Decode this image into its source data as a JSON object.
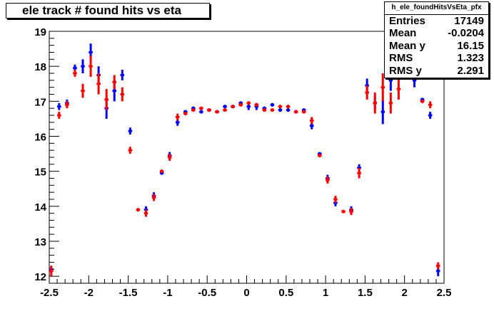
{
  "title": "ele track # found hits vs eta",
  "stats": {
    "name": "h_ele_foundHitsVsEta_pfx",
    "rows": [
      {
        "label": "Entries",
        "value": "17149"
      },
      {
        "label": "Mean",
        "value": "-0.0204"
      },
      {
        "label": "Mean y",
        "value": "16.15"
      },
      {
        "label": "RMS",
        "value": "1.323"
      },
      {
        "label": "RMS y",
        "value": "2.291"
      }
    ]
  },
  "chart_data": {
    "type": "scatter",
    "title": "ele track # found hits vs eta",
    "xlabel": "",
    "ylabel": "",
    "xlim": [
      -2.5,
      2.5
    ],
    "ylim": [
      11.8,
      19
    ],
    "x_ticks": [
      "-2.5",
      "-2",
      "-1.5",
      "-1",
      "-0.5",
      "0",
      "0.5",
      "1",
      "1.5",
      "2",
      "2.5"
    ],
    "y_ticks": [
      "12",
      "13",
      "14",
      "15",
      "16",
      "17",
      "18",
      "19"
    ],
    "grid": false,
    "bin_half_width": 0.025,
    "series": [
      {
        "color": "#0000ff",
        "points": [
          {
            "x": -2.475,
            "y": 12.2,
            "err": 0.1
          },
          {
            "x": -2.375,
            "y": 16.85,
            "err": 0.1
          },
          {
            "x": -2.275,
            "y": 16.95,
            "err": 0.1
          },
          {
            "x": -2.175,
            "y": 17.95,
            "err": 0.1
          },
          {
            "x": -2.075,
            "y": 18.0,
            "err": 0.2
          },
          {
            "x": -1.975,
            "y": 18.4,
            "err": 0.25
          },
          {
            "x": -1.875,
            "y": 17.75,
            "err": 0.25
          },
          {
            "x": -1.775,
            "y": 16.8,
            "err": 0.3
          },
          {
            "x": -1.675,
            "y": 17.3,
            "err": 0.3
          },
          {
            "x": -1.575,
            "y": 17.75,
            "err": 0.15
          },
          {
            "x": -1.475,
            "y": 16.15,
            "err": 0.1
          },
          {
            "x": -1.275,
            "y": 13.9,
            "err": 0.1
          },
          {
            "x": -1.175,
            "y": 14.3,
            "err": 0.1
          },
          {
            "x": -1.075,
            "y": 14.95,
            "err": 0.05
          },
          {
            "x": -0.975,
            "y": 15.45,
            "err": 0.1
          },
          {
            "x": -0.875,
            "y": 16.4,
            "err": 0.1
          },
          {
            "x": -0.775,
            "y": 16.7,
            "err": 0.05
          },
          {
            "x": -0.675,
            "y": 16.8,
            "err": 0.05
          },
          {
            "x": -0.575,
            "y": 16.7,
            "err": 0.05
          },
          {
            "x": -0.475,
            "y": 16.75,
            "err": 0.05
          },
          {
            "x": -0.375,
            "y": 16.7,
            "err": 0.05
          },
          {
            "x": -0.275,
            "y": 16.85,
            "err": 0.05
          },
          {
            "x": -0.175,
            "y": 16.85,
            "err": 0.05
          },
          {
            "x": -0.075,
            "y": 16.95,
            "err": 0.05
          },
          {
            "x": 0.025,
            "y": 16.85,
            "err": 0.1
          },
          {
            "x": 0.125,
            "y": 16.85,
            "err": 0.1
          },
          {
            "x": 0.225,
            "y": 16.8,
            "err": 0.05
          },
          {
            "x": 0.325,
            "y": 16.9,
            "err": 0.05
          },
          {
            "x": 0.425,
            "y": 16.75,
            "err": 0.05
          },
          {
            "x": 0.525,
            "y": 16.75,
            "err": 0.05
          },
          {
            "x": 0.625,
            "y": 16.7,
            "err": 0.05
          },
          {
            "x": 0.725,
            "y": 16.75,
            "err": 0.05
          },
          {
            "x": 0.825,
            "y": 16.3,
            "err": 0.1
          },
          {
            "x": 0.925,
            "y": 15.5,
            "err": 0.05
          },
          {
            "x": 1.025,
            "y": 14.8,
            "err": 0.1
          },
          {
            "x": 1.125,
            "y": 14.1,
            "err": 0.1
          },
          {
            "x": 1.325,
            "y": 13.9,
            "err": 0.1
          },
          {
            "x": 1.425,
            "y": 15.1,
            "err": 0.1
          },
          {
            "x": 1.525,
            "y": 17.45,
            "err": 0.2
          },
          {
            "x": 1.625,
            "y": 16.95,
            "err": 0.2
          },
          {
            "x": 1.725,
            "y": 16.7,
            "err": 0.35
          },
          {
            "x": 1.825,
            "y": 17.6,
            "err": 0.3
          },
          {
            "x": 1.925,
            "y": 17.85,
            "err": 0.25
          },
          {
            "x": 2.025,
            "y": 18.0,
            "err": 0.2
          },
          {
            "x": 2.125,
            "y": 17.6,
            "err": 0.2
          },
          {
            "x": 2.225,
            "y": 17.05,
            "err": 0.05
          },
          {
            "x": 2.325,
            "y": 16.6,
            "err": 0.1
          },
          {
            "x": 2.425,
            "y": 12.15,
            "err": 0.15
          }
        ]
      },
      {
        "color": "#ff0000",
        "points": [
          {
            "x": -2.475,
            "y": 12.15,
            "err": 0.15
          },
          {
            "x": -2.375,
            "y": 16.6,
            "err": 0.1
          },
          {
            "x": -2.275,
            "y": 16.9,
            "err": 0.1
          },
          {
            "x": -2.175,
            "y": 17.8,
            "err": 0.1
          },
          {
            "x": -2.075,
            "y": 17.3,
            "err": 0.2
          },
          {
            "x": -1.975,
            "y": 18.0,
            "err": 0.3
          },
          {
            "x": -1.875,
            "y": 17.5,
            "err": 0.3
          },
          {
            "x": -1.775,
            "y": 17.05,
            "err": 0.3
          },
          {
            "x": -1.675,
            "y": 17.55,
            "err": 0.2
          },
          {
            "x": -1.575,
            "y": 17.2,
            "err": 0.2
          },
          {
            "x": -1.475,
            "y": 15.6,
            "err": 0.1
          },
          {
            "x": -1.375,
            "y": 13.9,
            "err": 0.05
          },
          {
            "x": -1.275,
            "y": 13.8,
            "err": 0.1
          },
          {
            "x": -1.175,
            "y": 14.25,
            "err": 0.1
          },
          {
            "x": -1.075,
            "y": 15.0,
            "err": 0.05
          },
          {
            "x": -0.975,
            "y": 15.4,
            "err": 0.1
          },
          {
            "x": -0.875,
            "y": 16.55,
            "err": 0.1
          },
          {
            "x": -0.775,
            "y": 16.65,
            "err": 0.05
          },
          {
            "x": -0.675,
            "y": 16.75,
            "err": 0.05
          },
          {
            "x": -0.575,
            "y": 16.8,
            "err": 0.05
          },
          {
            "x": -0.475,
            "y": 16.75,
            "err": 0.05
          },
          {
            "x": -0.375,
            "y": 16.7,
            "err": 0.05
          },
          {
            "x": -0.275,
            "y": 16.75,
            "err": 0.05
          },
          {
            "x": -0.175,
            "y": 16.85,
            "err": 0.05
          },
          {
            "x": -0.075,
            "y": 16.9,
            "err": 0.05
          },
          {
            "x": 0.025,
            "y": 16.95,
            "err": 0.05
          },
          {
            "x": 0.125,
            "y": 16.9,
            "err": 0.05
          },
          {
            "x": 0.225,
            "y": 16.75,
            "err": 0.05
          },
          {
            "x": 0.325,
            "y": 16.75,
            "err": 0.05
          },
          {
            "x": 0.425,
            "y": 16.85,
            "err": 0.05
          },
          {
            "x": 0.525,
            "y": 16.85,
            "err": 0.05
          },
          {
            "x": 0.625,
            "y": 16.7,
            "err": 0.05
          },
          {
            "x": 0.725,
            "y": 16.7,
            "err": 0.05
          },
          {
            "x": 0.825,
            "y": 16.45,
            "err": 0.1
          },
          {
            "x": 0.925,
            "y": 15.45,
            "err": 0.05
          },
          {
            "x": 1.025,
            "y": 14.75,
            "err": 0.1
          },
          {
            "x": 1.125,
            "y": 14.2,
            "err": 0.1
          },
          {
            "x": 1.225,
            "y": 13.85,
            "err": 0.05
          },
          {
            "x": 1.325,
            "y": 13.85,
            "err": 0.1
          },
          {
            "x": 1.425,
            "y": 14.95,
            "err": 0.15
          },
          {
            "x": 1.525,
            "y": 17.25,
            "err": 0.2
          },
          {
            "x": 1.625,
            "y": 16.95,
            "err": 0.3
          },
          {
            "x": 1.725,
            "y": 17.4,
            "err": 0.4
          },
          {
            "x": 1.825,
            "y": 16.95,
            "err": 0.3
          },
          {
            "x": 1.925,
            "y": 17.35,
            "err": 0.3
          },
          {
            "x": 2.025,
            "y": 18.1,
            "err": 0.2
          },
          {
            "x": 2.125,
            "y": 17.85,
            "err": 0.2
          },
          {
            "x": 2.225,
            "y": 17.0,
            "err": 0.05
          },
          {
            "x": 2.325,
            "y": 16.9,
            "err": 0.1
          },
          {
            "x": 2.425,
            "y": 12.3,
            "err": 0.1
          }
        ]
      }
    ]
  }
}
